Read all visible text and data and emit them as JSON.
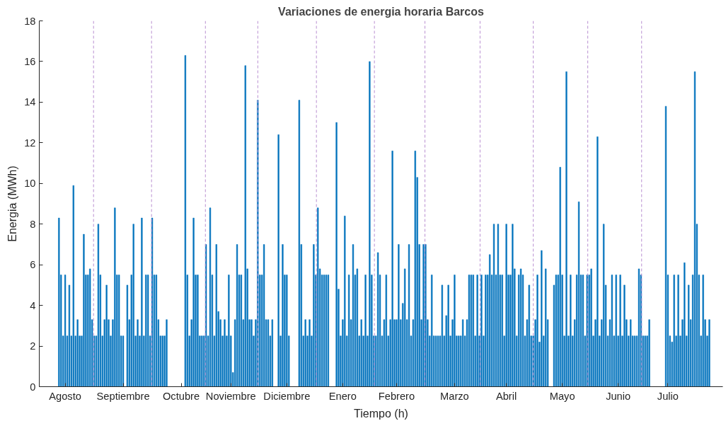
{
  "chart_data": {
    "type": "bar",
    "title": "Variaciones de energia horaria Barcos",
    "xlabel": "Tiempo (h)",
    "ylabel": "Energia (MWh)",
    "categories": [
      null,
      null,
      null,
      null,
      null,
      null,
      null,
      null,
      null,
      null,
      null,
      null,
      "Agosto",
      null,
      null,
      null,
      null,
      null,
      null,
      null,
      null,
      null,
      null,
      null,
      null,
      null,
      null,
      null,
      null,
      null,
      null,
      null,
      null,
      null,
      null,
      null,
      null,
      null,
      null,
      null,
      "Septiembre",
      null,
      null,
      null,
      null,
      null,
      null,
      null,
      null,
      null,
      null,
      null,
      null,
      null,
      null,
      null,
      null,
      null,
      null,
      null,
      null,
      null,
      null,
      null,
      null,
      null,
      null,
      null,
      "Octubre",
      null,
      null,
      null,
      null,
      null,
      null,
      null,
      null,
      null,
      null,
      null,
      null,
      null,
      null,
      null,
      null,
      null,
      null,
      null,
      null,
      null,
      null,
      null,
      "Noviembre",
      null,
      null,
      null,
      null,
      null,
      null,
      null,
      null,
      null,
      null,
      null,
      null,
      null,
      null,
      null,
      null,
      null,
      null,
      null,
      null,
      null,
      null,
      null,
      null,
      null,
      null,
      "Diciembre",
      null,
      null,
      null,
      null,
      null,
      null,
      null,
      null,
      null,
      null,
      null,
      null,
      null,
      null,
      null,
      null,
      null,
      null,
      null,
      null,
      null,
      null,
      null,
      null,
      null,
      null,
      "Enero",
      null,
      null,
      null,
      null,
      null,
      null,
      null,
      null,
      null,
      null,
      null,
      null,
      null,
      null,
      null,
      null,
      null,
      null,
      null,
      null,
      null,
      null,
      null,
      null,
      null,
      "Febrero",
      null,
      null,
      null,
      null,
      null,
      null,
      null,
      null,
      null,
      null,
      null,
      null,
      null,
      null,
      null,
      null,
      null,
      null,
      null,
      null,
      null,
      null,
      null,
      null,
      null,
      null,
      null,
      "Marzo",
      null,
      null,
      null,
      null,
      null,
      null,
      null,
      null,
      null,
      null,
      null,
      null,
      null,
      null,
      null,
      null,
      null,
      null,
      null,
      null,
      null,
      null,
      null,
      null,
      "Abril",
      null,
      null,
      null,
      null,
      null,
      null,
      null,
      null,
      null,
      null,
      null,
      null,
      null,
      null,
      null,
      null,
      null,
      null,
      null,
      null,
      null,
      null,
      null,
      null,
      null,
      null,
      "Mayo",
      null,
      null,
      null,
      null,
      null,
      null,
      null,
      null,
      null,
      null,
      null,
      null,
      null,
      null,
      null,
      null,
      null,
      null,
      null,
      null,
      null,
      null,
      null,
      null,
      null,
      null,
      "Junio",
      null,
      null,
      null,
      null,
      null,
      null,
      null,
      null,
      null,
      null,
      null,
      null,
      null,
      null,
      null,
      null,
      null,
      null,
      null,
      null,
      null,
      null,
      null,
      "Julio",
      null,
      null,
      null,
      null,
      null,
      null,
      null,
      null,
      null,
      null,
      null,
      null,
      null,
      null,
      null,
      null,
      null,
      null,
      null,
      null,
      null,
      null,
      null,
      null,
      null,
      null
    ],
    "values": [
      0,
      0,
      0,
      0,
      0,
      0,
      0,
      0,
      0,
      8.3,
      5.5,
      2.5,
      5.5,
      2.5,
      5.0,
      2.5,
      9.9,
      2.5,
      3.3,
      2.5,
      2.5,
      7.5,
      5.5,
      5.5,
      5.8,
      3.3,
      2.5,
      2.5,
      8.0,
      5.5,
      2.5,
      3.3,
      5.0,
      3.3,
      2.5,
      3.3,
      8.8,
      5.5,
      5.5,
      2.5,
      2.5,
      0,
      5.0,
      3.3,
      5.5,
      8.0,
      2.5,
      3.3,
      2.5,
      8.3,
      2.5,
      5.5,
      5.5,
      2.5,
      8.3,
      5.5,
      5.5,
      3.3,
      2.5,
      2.5,
      2.5,
      3.3,
      0,
      0,
      0,
      0,
      0,
      0,
      0,
      0,
      16.3,
      5.5,
      2.5,
      3.3,
      8.3,
      5.5,
      5.5,
      2.5,
      2.5,
      2.5,
      7.0,
      2.5,
      8.8,
      5.5,
      2.5,
      7.0,
      3.7,
      3.3,
      2.5,
      3.3,
      2.5,
      5.5,
      2.5,
      0.7,
      3.3,
      7.0,
      5.5,
      5.5,
      3.3,
      15.8,
      5.8,
      3.3,
      3.3,
      2.5,
      3.3,
      14.1,
      5.5,
      5.5,
      7.0,
      3.3,
      3.3,
      2.5,
      3.3,
      0,
      0,
      12.4,
      2.5,
      7.0,
      5.5,
      5.5,
      2.5,
      0,
      0,
      0,
      0,
      14.1,
      7.0,
      2.5,
      3.3,
      2.5,
      3.3,
      2.5,
      7.0,
      5.5,
      8.8,
      5.8,
      5.5,
      5.5,
      5.5,
      5.5,
      0,
      0,
      0,
      13.0,
      4.8,
      2.5,
      3.3,
      8.4,
      2.5,
      5.5,
      3.3,
      7.0,
      5.5,
      5.8,
      2.5,
      3.3,
      2.5,
      5.5,
      2.5,
      16.0,
      5.5,
      2.5,
      2.5,
      6.6,
      5.5,
      2.5,
      3.3,
      5.5,
      2.5,
      3.3,
      11.6,
      3.3,
      3.3,
      7.0,
      3.3,
      4.1,
      5.8,
      3.3,
      7.0,
      2.5,
      3.3,
      11.6,
      10.3,
      7.0,
      3.3,
      7.0,
      7.0,
      3.3,
      2.5,
      5.5,
      2.5,
      2.5,
      2.5,
      2.5,
      5.0,
      2.5,
      3.5,
      5.0,
      2.5,
      3.3,
      5.5,
      2.5,
      2.5,
      2.5,
      3.3,
      2.5,
      3.3,
      5.5,
      5.5,
      5.5,
      2.5,
      5.5,
      2.5,
      5.5,
      2.5,
      5.5,
      5.5,
      6.5,
      5.5,
      8.0,
      5.5,
      8.0,
      5.5,
      5.5,
      2.5,
      8.0,
      5.5,
      5.5,
      8.0,
      5.8,
      2.5,
      5.5,
      5.8,
      5.5,
      2.5,
      3.3,
      5.0,
      2.5,
      2.5,
      3.3,
      5.5,
      2.2,
      6.7,
      2.5,
      5.8,
      3.3,
      0,
      0,
      5.0,
      5.5,
      5.5,
      10.8,
      5.5,
      2.5,
      15.5,
      2.5,
      5.5,
      2.5,
      3.3,
      5.5,
      9.1,
      5.5,
      5.5,
      2.5,
      5.5,
      5.5,
      5.8,
      2.5,
      3.3,
      12.3,
      2.5,
      3.3,
      8.0,
      5.0,
      2.5,
      3.3,
      5.5,
      2.5,
      5.5,
      2.5,
      5.5,
      2.5,
      5.0,
      3.3,
      2.5,
      3.3,
      2.5,
      2.5,
      2.5,
      5.8,
      5.5,
      2.5,
      2.5,
      2.5,
      3.3,
      0,
      0,
      0,
      0,
      0,
      0,
      0,
      13.8,
      5.5,
      2.5,
      2.2,
      5.5,
      2.5,
      5.5,
      2.5,
      3.3,
      6.1,
      2.5,
      5.0,
      3.3,
      5.5,
      15.5,
      8.0,
      5.5,
      2.5,
      5.5,
      3.3,
      2.5,
      3.3,
      0,
      0,
      0,
      0,
      0,
      0
    ],
    "color": "#0072bd",
    "ylim": [
      0,
      18
    ],
    "yticks": [
      0,
      2,
      4,
      6,
      8,
      10,
      12,
      14,
      16,
      18
    ]
  }
}
